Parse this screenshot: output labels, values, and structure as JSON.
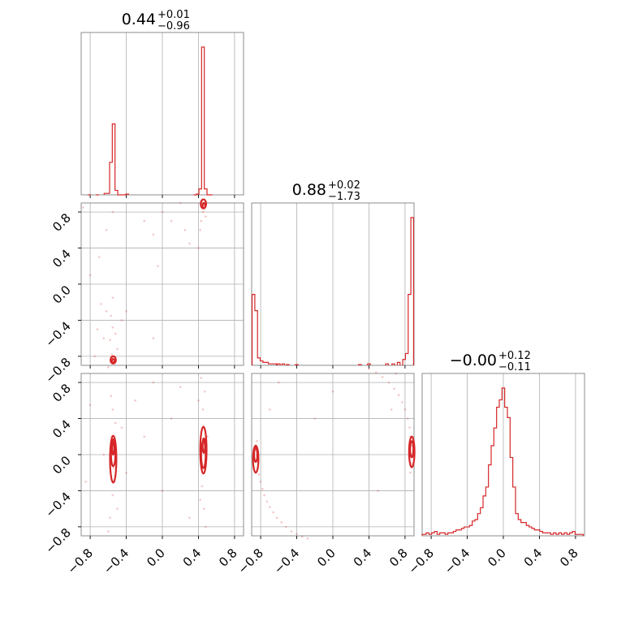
{
  "chart_data": {
    "type": "corner",
    "color": "#d62728",
    "lim": [
      -0.9,
      0.9
    ],
    "ticks": [
      -0.8,
      -0.4,
      0.0,
      0.4,
      0.8
    ],
    "tick_labels": [
      "−0.8",
      "−0.4",
      "0.0",
      "0.4",
      "0.8"
    ],
    "grid": true,
    "titles": [
      {
        "value": "0.44",
        "upper": "+0.01",
        "lower": "−0.96"
      },
      {
        "value": "0.88",
        "upper": "+0.02",
        "lower": "−1.73"
      },
      {
        "value": "−0.00",
        "upper": "+0.12",
        "lower": "−0.11"
      }
    ],
    "histograms": [
      {
        "bin_width": 0.03,
        "bins": [
          [
            -0.81,
            0.0
          ],
          [
            -0.72,
            0.0
          ],
          [
            -0.63,
            0.01
          ],
          [
            -0.6,
            0.01
          ],
          [
            -0.57,
            0.22
          ],
          [
            -0.54,
            0.48
          ],
          [
            -0.51,
            0.03
          ],
          [
            -0.48,
            0.0
          ],
          [
            -0.45,
            0.0
          ],
          [
            -0.42,
            0.0
          ],
          [
            -0.39,
            0.005
          ],
          [
            0.36,
            0.0
          ],
          [
            0.39,
            0.005
          ],
          [
            0.42,
            0.04
          ],
          [
            0.45,
            1.0
          ],
          [
            0.48,
            0.04
          ],
          [
            0.51,
            0.0
          ],
          [
            0.54,
            0.0
          ]
        ]
      },
      {
        "bin_width": 0.03,
        "bins": [
          [
            -0.88,
            0.48
          ],
          [
            -0.85,
            0.37
          ],
          [
            -0.82,
            0.05
          ],
          [
            -0.79,
            0.03
          ],
          [
            -0.76,
            0.02
          ],
          [
            -0.73,
            0.02
          ],
          [
            -0.7,
            0.01
          ],
          [
            -0.67,
            0.01
          ],
          [
            -0.64,
            0.01
          ],
          [
            -0.6,
            0.01
          ],
          [
            -0.55,
            0.01
          ],
          [
            -0.5,
            0.005
          ],
          [
            -0.4,
            0.005
          ],
          [
            0.3,
            0.005
          ],
          [
            0.4,
            0.01
          ],
          [
            0.6,
            0.01
          ],
          [
            0.67,
            0.01
          ],
          [
            0.73,
            0.02
          ],
          [
            0.79,
            0.04
          ],
          [
            0.82,
            0.08
          ],
          [
            0.85,
            0.48
          ],
          [
            0.88,
            1.0
          ]
        ]
      },
      {
        "bin_width": 0.03,
        "bins": [
          [
            -0.9,
            0.01
          ],
          [
            -0.87,
            0.01
          ],
          [
            -0.84,
            0.02
          ],
          [
            -0.81,
            0.01
          ],
          [
            -0.78,
            0.02
          ],
          [
            -0.75,
            0.03
          ],
          [
            -0.72,
            0.01
          ],
          [
            -0.69,
            0.02
          ],
          [
            -0.66,
            0.02
          ],
          [
            -0.63,
            0.01
          ],
          [
            -0.6,
            0.02
          ],
          [
            -0.57,
            0.02
          ],
          [
            -0.54,
            0.03
          ],
          [
            -0.51,
            0.04
          ],
          [
            -0.48,
            0.04
          ],
          [
            -0.45,
            0.05
          ],
          [
            -0.42,
            0.06
          ],
          [
            -0.39,
            0.06
          ],
          [
            -0.36,
            0.07
          ],
          [
            -0.33,
            0.1
          ],
          [
            -0.3,
            0.11
          ],
          [
            -0.27,
            0.15
          ],
          [
            -0.24,
            0.19
          ],
          [
            -0.21,
            0.27
          ],
          [
            -0.18,
            0.33
          ],
          [
            -0.15,
            0.48
          ],
          [
            -0.12,
            0.61
          ],
          [
            -0.09,
            0.73
          ],
          [
            -0.06,
            0.87
          ],
          [
            -0.03,
            0.92
          ],
          [
            0.0,
            1.0
          ],
          [
            0.03,
            0.87
          ],
          [
            0.06,
            0.8
          ],
          [
            0.09,
            0.53
          ],
          [
            0.12,
            0.33
          ],
          [
            0.15,
            0.15
          ],
          [
            0.18,
            0.11
          ],
          [
            0.21,
            0.09
          ],
          [
            0.24,
            0.09
          ],
          [
            0.27,
            0.07
          ],
          [
            0.3,
            0.06
          ],
          [
            0.33,
            0.05
          ],
          [
            0.36,
            0.04
          ],
          [
            0.39,
            0.04
          ],
          [
            0.42,
            0.03
          ],
          [
            0.45,
            0.02
          ],
          [
            0.48,
            0.02
          ],
          [
            0.51,
            0.02
          ],
          [
            0.54,
            0.01
          ],
          [
            0.57,
            0.02
          ],
          [
            0.6,
            0.01
          ],
          [
            0.63,
            0.02
          ],
          [
            0.66,
            0.01
          ],
          [
            0.69,
            0.02
          ],
          [
            0.72,
            0.01
          ],
          [
            0.75,
            0.02
          ],
          [
            0.78,
            0.03
          ],
          [
            0.81,
            0.01
          ],
          [
            0.84,
            0.01
          ],
          [
            0.87,
            0.01
          ]
        ]
      }
    ],
    "scatter": [
      {
        "x_param": 0,
        "y_param": 1,
        "points": [
          [
            -0.55,
            -0.82
          ],
          [
            -0.54,
            -0.85
          ],
          [
            -0.56,
            -0.78
          ],
          [
            -0.53,
            -0.87
          ],
          [
            -0.55,
            -0.48
          ],
          [
            -0.58,
            -0.62
          ],
          [
            -0.52,
            -0.55
          ],
          [
            -0.57,
            -0.35
          ],
          [
            -0.62,
            -0.3
          ],
          [
            -0.68,
            -0.22
          ],
          [
            -0.5,
            -0.72
          ],
          [
            -0.6,
            -0.92
          ],
          [
            -0.65,
            -0.6
          ],
          [
            -0.45,
            -0.4
          ],
          [
            -0.72,
            -0.5
          ],
          [
            -0.55,
            0.8
          ],
          [
            -0.62,
            0.6
          ],
          [
            -0.7,
            0.3
          ],
          [
            -0.2,
            0.7
          ],
          [
            -0.1,
            0.55
          ],
          [
            0.1,
            0.7
          ],
          [
            0.0,
            0.8
          ],
          [
            0.25,
            0.6
          ],
          [
            0.3,
            0.45
          ],
          [
            -0.05,
            0.2
          ],
          [
            0.2,
            0.9
          ],
          [
            0.44,
            0.92
          ],
          [
            0.46,
            0.88
          ],
          [
            0.47,
            0.85
          ],
          [
            0.45,
            0.8
          ],
          [
            0.48,
            0.75
          ],
          [
            0.43,
            0.7
          ],
          [
            0.42,
            0.6
          ],
          [
            0.4,
            0.4
          ],
          [
            -0.1,
            -0.6
          ],
          [
            -0.8,
            0.1
          ],
          [
            -0.88,
            0.85
          ],
          [
            -0.75,
            -0.8
          ],
          [
            -0.4,
            -0.3
          ],
          [
            -0.55,
            -0.15
          ]
        ],
        "contours": [
          {
            "cx": 0.455,
            "cy": 0.89,
            "rx": 0.03,
            "ry": 0.05
          },
          {
            "cx": 0.46,
            "cy": 0.87,
            "rx": 0.015,
            "ry": 0.03
          },
          {
            "cx": -0.545,
            "cy": -0.84,
            "rx": 0.03,
            "ry": 0.04
          },
          {
            "cx": -0.545,
            "cy": -0.85,
            "rx": 0.015,
            "ry": 0.02
          }
        ]
      },
      {
        "x_param": 0,
        "y_param": 2,
        "points": [
          [
            -0.55,
            0.1
          ],
          [
            -0.54,
            -0.15
          ],
          [
            -0.56,
            0.2
          ],
          [
            -0.53,
            -0.3
          ],
          [
            -0.55,
            -0.45
          ],
          [
            -0.58,
            -0.7
          ],
          [
            -0.52,
            0.35
          ],
          [
            -0.55,
            0.5
          ],
          [
            -0.6,
            -0.85
          ],
          [
            -0.5,
            -0.6
          ],
          [
            -0.57,
            0.65
          ],
          [
            -0.45,
            0.3
          ],
          [
            -0.4,
            -0.2
          ],
          [
            -0.65,
            0.0
          ],
          [
            0.45,
            0.1
          ],
          [
            0.44,
            -0.1
          ],
          [
            0.46,
            0.3
          ],
          [
            0.45,
            0.5
          ],
          [
            0.47,
            0.7
          ],
          [
            0.44,
            -0.35
          ],
          [
            0.46,
            -0.6
          ],
          [
            0.43,
            0.85
          ],
          [
            0.48,
            -0.8
          ],
          [
            0.5,
            0.2
          ],
          [
            0.4,
            0.6
          ],
          [
            0.42,
            -0.5
          ],
          [
            -0.1,
            0.8
          ],
          [
            0.1,
            0.4
          ],
          [
            -0.2,
            0.2
          ],
          [
            0.0,
            -0.4
          ],
          [
            0.2,
            0.75
          ],
          [
            0.3,
            -0.7
          ],
          [
            -0.8,
            0.55
          ],
          [
            -0.85,
            -0.3
          ],
          [
            -0.3,
            0.6
          ]
        ],
        "contours": [
          {
            "cx": -0.545,
            "cy": -0.05,
            "rx": 0.035,
            "ry": 0.26
          },
          {
            "cx": -0.545,
            "cy": 0.02,
            "rx": 0.025,
            "ry": 0.15
          },
          {
            "cx": -0.545,
            "cy": 0.07,
            "rx": 0.012,
            "ry": 0.07
          },
          {
            "cx": 0.455,
            "cy": 0.05,
            "rx": 0.035,
            "ry": 0.26
          },
          {
            "cx": 0.455,
            "cy": 0.0,
            "rx": 0.025,
            "ry": 0.15
          },
          {
            "cx": 0.46,
            "cy": 0.1,
            "rx": 0.014,
            "ry": 0.08
          }
        ]
      },
      {
        "x_param": 1,
        "y_param": 2,
        "points": [
          [
            -0.85,
            0.05
          ],
          [
            -0.86,
            -0.08
          ],
          [
            -0.84,
            0.15
          ],
          [
            -0.83,
            -0.15
          ],
          [
            -0.82,
            -0.22
          ],
          [
            -0.8,
            -0.3
          ],
          [
            -0.78,
            -0.38
          ],
          [
            -0.76,
            -0.45
          ],
          [
            -0.73,
            -0.52
          ],
          [
            -0.7,
            -0.58
          ],
          [
            -0.66,
            -0.64
          ],
          [
            -0.62,
            -0.7
          ],
          [
            -0.57,
            -0.75
          ],
          [
            -0.52,
            -0.8
          ],
          [
            -0.46,
            -0.85
          ],
          [
            -0.4,
            -0.88
          ],
          [
            -0.34,
            -0.91
          ],
          [
            -0.28,
            -0.93
          ],
          [
            0.4,
            0.95
          ],
          [
            0.48,
            0.91
          ],
          [
            0.55,
            0.86
          ],
          [
            0.62,
            0.8
          ],
          [
            0.68,
            0.73
          ],
          [
            0.73,
            0.66
          ],
          [
            0.77,
            0.58
          ],
          [
            0.8,
            0.5
          ],
          [
            0.83,
            0.4
          ],
          [
            0.85,
            0.3
          ],
          [
            0.86,
            0.2
          ],
          [
            0.87,
            0.1
          ],
          [
            0.88,
            0.0
          ],
          [
            0.87,
            -0.1
          ],
          [
            0.86,
            -0.2
          ],
          [
            0.7,
            0.9
          ],
          [
            0.65,
            0.5
          ],
          [
            -0.6,
            0.8
          ],
          [
            -0.2,
            0.4
          ],
          [
            0.0,
            0.7
          ],
          [
            -0.7,
            0.5
          ],
          [
            0.5,
            -0.4
          ]
        ],
        "contours": [
          {
            "cx": -0.855,
            "cy": -0.05,
            "rx": 0.03,
            "ry": 0.15
          },
          {
            "cx": -0.855,
            "cy": 0.0,
            "rx": 0.018,
            "ry": 0.08
          },
          {
            "cx": 0.875,
            "cy": 0.03,
            "rx": 0.03,
            "ry": 0.17
          },
          {
            "cx": 0.875,
            "cy": 0.06,
            "rx": 0.018,
            "ry": 0.09
          }
        ]
      }
    ]
  }
}
